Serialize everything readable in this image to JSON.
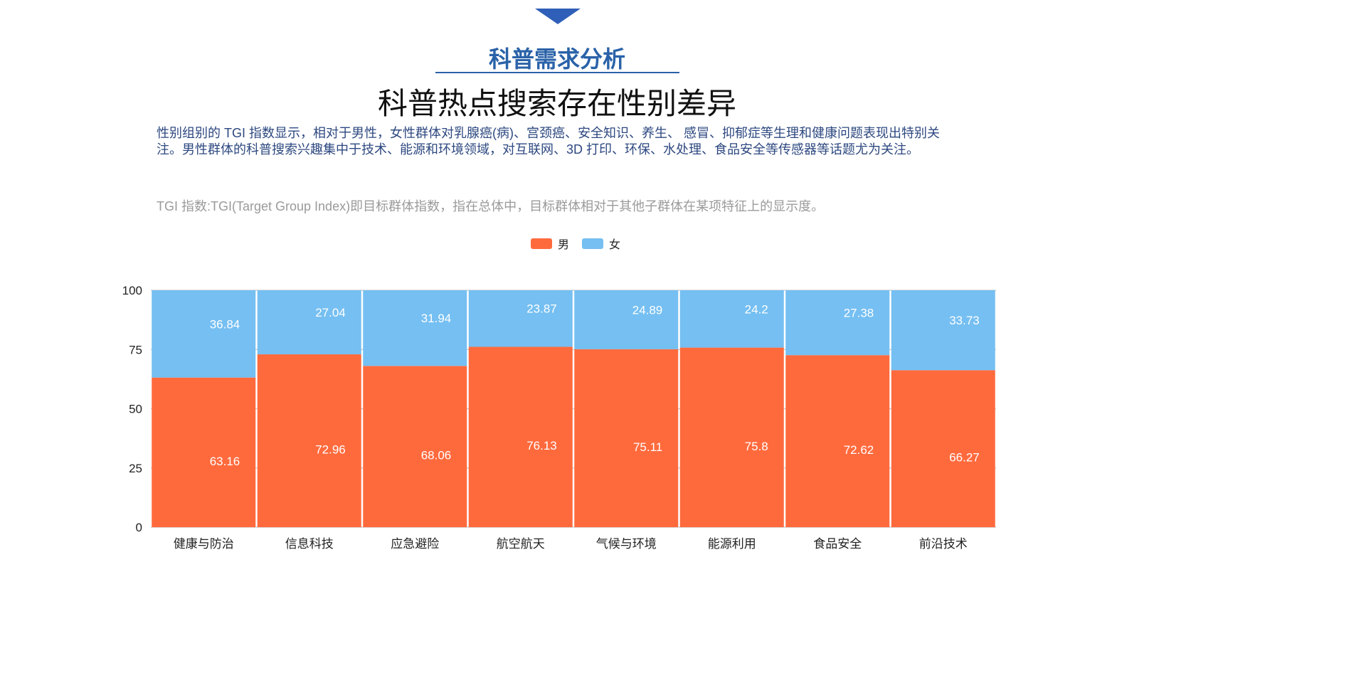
{
  "header": {
    "subtitle": "科普需求分析",
    "title": "科普热点搜索存在性别差异",
    "paragraph": "性别组别的 TGI 指数显示，相对于男性，女性群体对乳腺癌(病)、宫颈癌、安全知识、养生、 感冒、抑郁症等生理和健康问题表现出特别关注。男性群体的科普搜索兴趣集中于技术、能源和环境领域，对互联网、3D 打印、环保、水处理、食品安全等传感器等话题尤为关注。",
    "note": "TGI 指数:TGI(Target Group Index)即目标群体指数，指在总体中，目标群体相对于其他子群体在某项特征上的显示度。"
  },
  "chart_data": {
    "type": "bar",
    "stacked": true,
    "categories": [
      "健康与防治",
      "信息科技",
      "应急避险",
      "航空航天",
      "气候与环境",
      "能源利用",
      "食品安全",
      "前沿技术"
    ],
    "series": [
      {
        "name": "男",
        "color": "#ff6a3d",
        "values": [
          63.16,
          72.96,
          68.06,
          76.13,
          75.11,
          75.8,
          72.62,
          66.27
        ]
      },
      {
        "name": "女",
        "color": "#75bff2",
        "values": [
          36.84,
          27.04,
          31.94,
          23.87,
          24.89,
          24.2,
          27.38,
          33.73
        ]
      }
    ],
    "ylim": [
      0,
      100
    ],
    "yticks": [
      0,
      25,
      50,
      75,
      100
    ],
    "grid": true,
    "legend_position": "top-center"
  }
}
